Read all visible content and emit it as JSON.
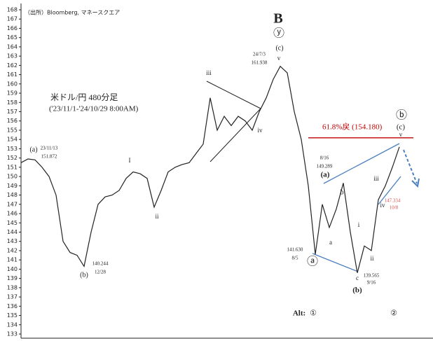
{
  "chart_data": {
    "type": "line",
    "title": "米ドル/円 480分足",
    "subtitle": "('23/11/1-'24/10/29 8:00AM)",
    "source": "（出所）Bloomberg, マネースクエア",
    "values": [
      151.5,
      151.9,
      151.8,
      151,
      150,
      148,
      143,
      141.8,
      141.5,
      140.3,
      144,
      147,
      147.8,
      148,
      148.5,
      149.8,
      150.5,
      150.3,
      149.8,
      146.7,
      148.5,
      150.5,
      151,
      151.3,
      151.5,
      152.5,
      153.5,
      158.5,
      155,
      156.5,
      155.5,
      156.5,
      156,
      155,
      157,
      158.5,
      160.5,
      161.9,
      161.2,
      157,
      154,
      149,
      141.6,
      147,
      144.5,
      146.5,
      149.3,
      144,
      139.6,
      142.5,
      142,
      147.5,
      149,
      151,
      153.2
    ],
    "color": "#222222",
    "ylim": [
      133,
      168
    ],
    "yticks": [
      133,
      134,
      135,
      136,
      137,
      138,
      139,
      140,
      141,
      142,
      143,
      144,
      145,
      146,
      147,
      148,
      149,
      150,
      151,
      152,
      153,
      154,
      155,
      156,
      157,
      158,
      159,
      160,
      161,
      162,
      163,
      164,
      165,
      166,
      167,
      168
    ],
    "level": 154.18,
    "level_label": "61.8%戻 (154.180)",
    "level_color": "#c00000",
    "annotations": [
      "B",
      "ⓨ",
      "(c)",
      "24/7/3",
      "161.938",
      "v",
      "iii",
      "iv",
      "I",
      "ii",
      "(a)",
      "23/11/13",
      "151.872",
      "140.244",
      "12/28",
      "(b)",
      "ⓑ",
      "(c)",
      "v",
      "8/16",
      "149.289",
      "(a)",
      "b",
      "a",
      "i",
      "ii",
      "iii",
      "iv",
      "147.334",
      "10/8",
      "141.630",
      "8/5",
      "ⓐ",
      "c",
      "139.565",
      "9/16",
      "(b)",
      "Alt:",
      "①",
      "②"
    ]
  }
}
